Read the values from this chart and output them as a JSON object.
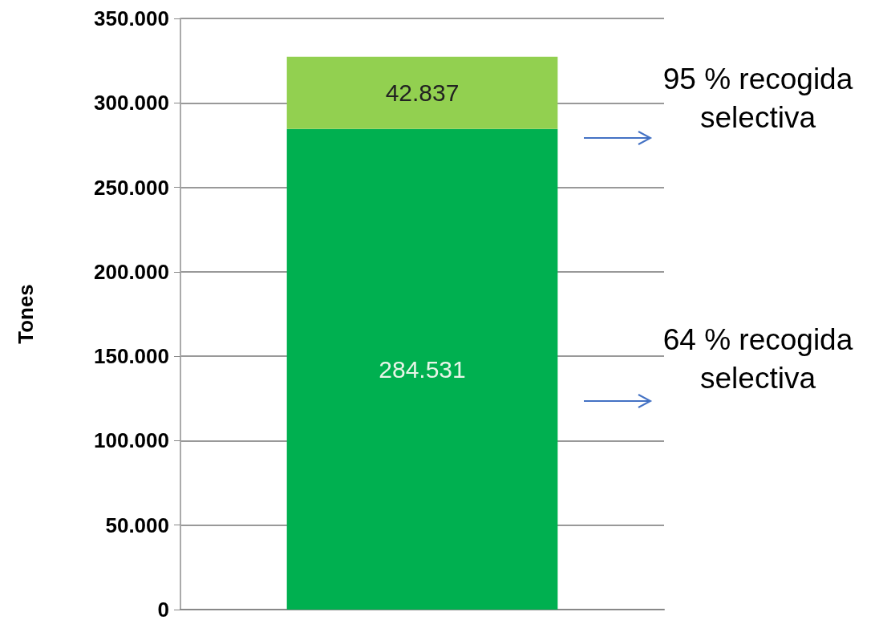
{
  "chart_data": {
    "type": "bar",
    "stacked": true,
    "ylabel": "Tones",
    "categories": [
      null
    ],
    "series": [
      {
        "color": "#00b050",
        "values": [
          284531
        ],
        "value_labels": [
          "284.531"
        ]
      },
      {
        "color": "#92d050",
        "values": [
          42837
        ],
        "value_labels": [
          "42.837"
        ]
      }
    ],
    "ylim": [
      0,
      350000
    ],
    "yticks": [
      0,
      {
        "value": 50000,
        "label": "50.000"
      },
      {
        "value": 100000,
        "label": "100.000"
      },
      {
        "value": 150000,
        "label": "150.000"
      },
      {
        "value": 200000,
        "label": "200.000"
      },
      {
        "value": 250000,
        "label": "250.000"
      },
      {
        "value": 300000,
        "label": "300.000"
      },
      {
        "value": 350000,
        "label": "350.000"
      }
    ],
    "grid": "y",
    "annotations": [
      "95 % recogida selectiva",
      "64 % recogida selectiva"
    ]
  }
}
